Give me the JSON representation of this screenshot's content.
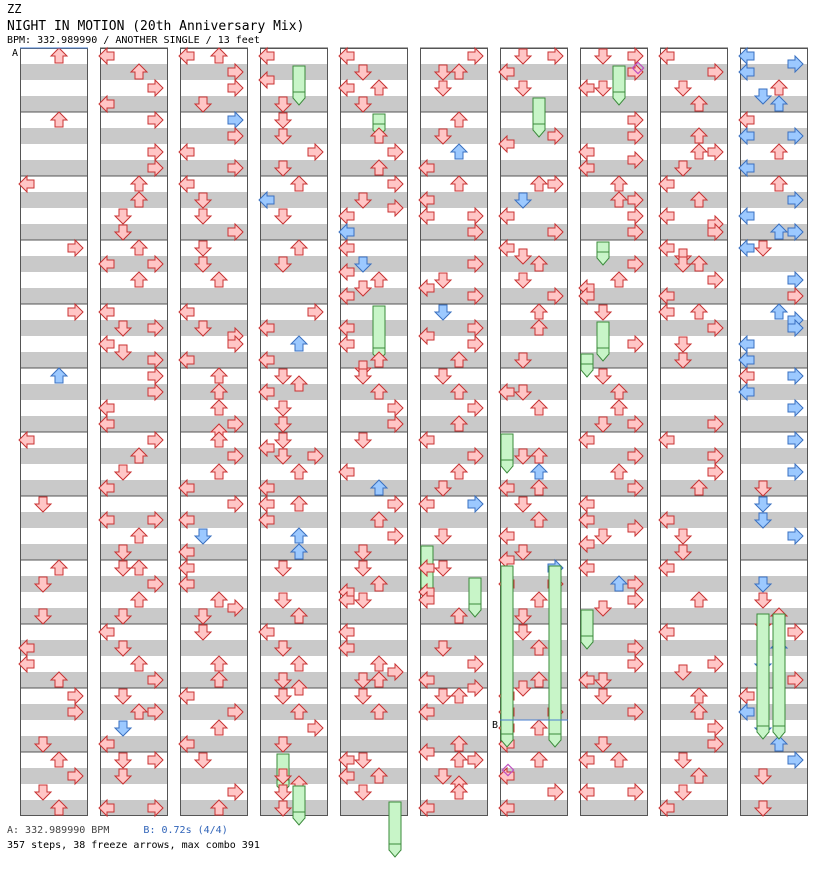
{
  "header": {
    "artist": "ZZ",
    "song_title": "NIGHT IN MOTION (20th Anniversary Mix)",
    "subline": "BPM: 332.989990 / ANOTHER SINGLE / 13 feet"
  },
  "chart": {
    "num_columns": 10,
    "measures_per_column": 12,
    "lanes": [
      "left",
      "down",
      "up",
      "right"
    ],
    "colors": {
      "note_red_fill": "#ffc6c6",
      "note_red_stroke": "#c83232",
      "note_blue_fill": "#9cc9ff",
      "note_blue_stroke": "#3a70c0",
      "freeze_fill": "#c8f5c8",
      "freeze_stroke": "#3a8a3a",
      "stripe_gray": "#c9c9c9",
      "marker_line": "#4a7fd0",
      "mine_color": "#c050c0"
    },
    "markers": [
      {
        "label": "A",
        "column": 0,
        "measure": 0
      },
      {
        "label": "B",
        "column": 6,
        "measure": 10.5
      }
    ]
  },
  "footer": {
    "bpm_a": "A: 332.989990 BPM",
    "stop_b": "B: 0.72s (4/4)",
    "stats": "357 steps, 38 freeze arrows, max combo 391"
  }
}
